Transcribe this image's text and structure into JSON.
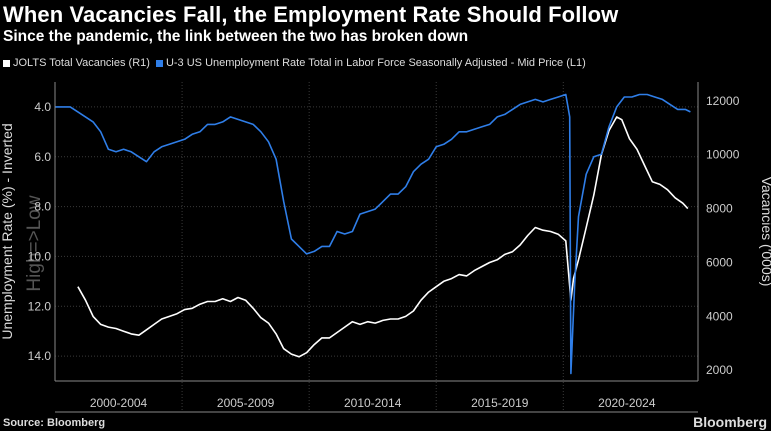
{
  "title": "When Vacancies Fall, the Employment Rate Should Follow",
  "subtitle": "Since the pandemic, the link between the two has broken down",
  "source": "Source: Bloomberg",
  "brand": "Bloomberg",
  "colors": {
    "vacancies": "#ffffff",
    "unemployment": "#2f7ee8",
    "background": "#000000",
    "grid": "#444444"
  },
  "chart_data": {
    "type": "line",
    "title": "When Vacancies Fall, the Employment Rate Should Follow",
    "subtitle": "Since the pandemic, the link between the two has broken down",
    "x_categories": [
      "2000-2004",
      "2005-2009",
      "2010-2014",
      "2015-2019",
      "2020-2024"
    ],
    "y_left": {
      "label": "Unemployment Rate (%) - Inverted",
      "inverted": true,
      "range": [
        3.0,
        15.0
      ],
      "ticks": [
        "4.0",
        "6.0",
        "8.0",
        "10.0",
        "12.0",
        "14.0"
      ]
    },
    "y_right": {
      "label": "Vacancies ('000s)",
      "range": [
        1600,
        12700
      ],
      "ticks": [
        "2000",
        "4000",
        "6000",
        "8000",
        "10000",
        "12000"
      ]
    },
    "ghost_label": "High=>Low",
    "grid": true,
    "series": [
      {
        "name": "JOLTS Total Vacancies (R1)",
        "axis": "right",
        "x": [
          2000.9,
          2001.2,
          2001.5,
          2001.8,
          2002.1,
          2002.4,
          2002.7,
          2003.0,
          2003.3,
          2003.6,
          2003.9,
          2004.2,
          2004.5,
          2004.8,
          2005.1,
          2005.4,
          2005.7,
          2006.0,
          2006.3,
          2006.6,
          2006.9,
          2007.2,
          2007.5,
          2007.8,
          2008.1,
          2008.4,
          2008.7,
          2009.0,
          2009.3,
          2009.6,
          2009.9,
          2010.2,
          2010.5,
          2010.8,
          2011.1,
          2011.4,
          2011.7,
          2012.0,
          2012.3,
          2012.6,
          2012.9,
          2013.2,
          2013.5,
          2013.8,
          2014.1,
          2014.4,
          2014.7,
          2015.0,
          2015.3,
          2015.6,
          2015.9,
          2016.2,
          2016.5,
          2016.8,
          2017.1,
          2017.4,
          2017.7,
          2018.0,
          2018.3,
          2018.6,
          2018.9,
          2019.2,
          2019.5,
          2019.8,
          2020.1,
          2020.3,
          2020.4,
          2020.6,
          2020.9,
          2021.2,
          2021.5,
          2021.8,
          2022.1,
          2022.3,
          2022.6,
          2022.9,
          2023.2,
          2023.5,
          2023.8,
          2024.1,
          2024.4,
          2024.7,
          2024.9
        ],
        "values": [
          5100,
          4600,
          4000,
          3700,
          3600,
          3550,
          3450,
          3350,
          3300,
          3500,
          3700,
          3900,
          4000,
          4100,
          4250,
          4300,
          4450,
          4550,
          4550,
          4650,
          4550,
          4700,
          4600,
          4300,
          3950,
          3750,
          3350,
          2800,
          2600,
          2500,
          2650,
          2950,
          3200,
          3200,
          3400,
          3600,
          3800,
          3700,
          3800,
          3750,
          3850,
          3900,
          3900,
          4000,
          4200,
          4600,
          4900,
          5100,
          5300,
          5400,
          5550,
          5500,
          5700,
          5850,
          6000,
          6100,
          6300,
          6400,
          6650,
          7000,
          7300,
          7200,
          7150,
          7050,
          6800,
          4600,
          5400,
          6100,
          7300,
          8500,
          10000,
          10900,
          11400,
          11300,
          10600,
          10200,
          9600,
          9000,
          8900,
          8700,
          8400,
          8200,
          8000
        ]
      },
      {
        "name": "U-3 US Unemployment Rate Total in Labor Force Seasonally Adjusted - Mid Price (L1)",
        "axis": "left",
        "x": [
          2000.0,
          2000.3,
          2000.6,
          2000.9,
          2001.2,
          2001.5,
          2001.8,
          2002.1,
          2002.4,
          2002.7,
          2003.0,
          2003.3,
          2003.6,
          2003.9,
          2004.2,
          2004.5,
          2004.8,
          2005.1,
          2005.4,
          2005.7,
          2006.0,
          2006.3,
          2006.6,
          2006.9,
          2007.2,
          2007.5,
          2007.8,
          2008.1,
          2008.4,
          2008.7,
          2009.0,
          2009.3,
          2009.6,
          2009.9,
          2010.2,
          2010.5,
          2010.8,
          2011.1,
          2011.4,
          2011.7,
          2012.0,
          2012.3,
          2012.6,
          2012.9,
          2013.2,
          2013.5,
          2013.8,
          2014.1,
          2014.4,
          2014.7,
          2015.0,
          2015.3,
          2015.6,
          2015.9,
          2016.2,
          2016.5,
          2016.8,
          2017.1,
          2017.4,
          2017.7,
          2018.0,
          2018.3,
          2018.6,
          2018.9,
          2019.2,
          2019.5,
          2019.8,
          2020.1,
          2020.25,
          2020.3,
          2020.45,
          2020.6,
          2020.9,
          2021.2,
          2021.5,
          2021.8,
          2022.1,
          2022.4,
          2022.7,
          2023.0,
          2023.3,
          2023.6,
          2023.9,
          2024.2,
          2024.5,
          2024.8,
          2025.0
        ],
        "values": [
          4.0,
          4.0,
          4.0,
          4.2,
          4.4,
          4.6,
          5.0,
          5.7,
          5.8,
          5.7,
          5.8,
          6.0,
          6.2,
          5.8,
          5.6,
          5.5,
          5.4,
          5.3,
          5.1,
          5.0,
          4.7,
          4.7,
          4.6,
          4.4,
          4.5,
          4.6,
          4.7,
          5.0,
          5.4,
          6.1,
          7.8,
          9.3,
          9.6,
          9.9,
          9.8,
          9.6,
          9.6,
          9.0,
          9.1,
          9.0,
          8.3,
          8.2,
          8.1,
          7.8,
          7.5,
          7.5,
          7.2,
          6.6,
          6.3,
          6.1,
          5.6,
          5.5,
          5.3,
          5.0,
          5.0,
          4.9,
          4.8,
          4.7,
          4.4,
          4.3,
          4.1,
          3.9,
          3.8,
          3.7,
          3.8,
          3.7,
          3.6,
          3.5,
          4.4,
          14.7,
          11.1,
          8.4,
          6.7,
          6.0,
          5.9,
          4.8,
          4.0,
          3.6,
          3.6,
          3.5,
          3.5,
          3.6,
          3.7,
          3.9,
          4.1,
          4.1,
          4.2
        ]
      }
    ]
  }
}
